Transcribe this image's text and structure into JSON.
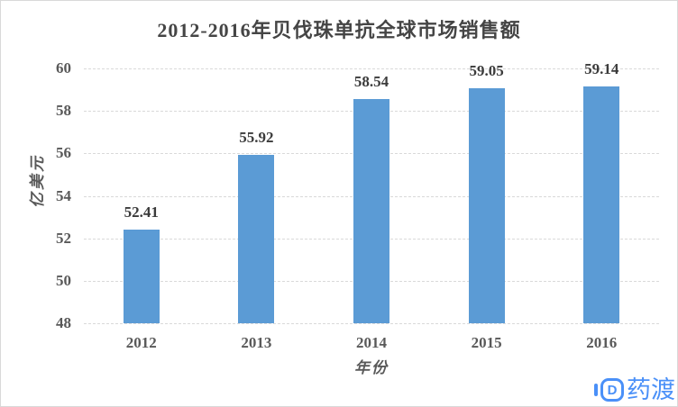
{
  "chart_data": {
    "type": "bar",
    "title": "2012-2016年贝伐珠单抗全球市场销售额",
    "categories": [
      "2012",
      "2013",
      "2014",
      "2015",
      "2016"
    ],
    "values": [
      52.41,
      55.92,
      58.54,
      59.05,
      59.14
    ],
    "data_labels": [
      "52.41",
      "55.92",
      "58.54",
      "59.05",
      "59.14"
    ],
    "xlabel": "年份",
    "ylabel": "亿美元",
    "ylim": [
      48,
      60
    ],
    "yticks": [
      48,
      50,
      52,
      54,
      56,
      58,
      60
    ],
    "grid": "horizontal dashed gridlines on",
    "legend_position": "none",
    "bar_color": "#5B9BD5",
    "gridline_color": "#D9D9D9",
    "title_color": "#454545",
    "tick_label_color": "#595959",
    "data_label_color": "#3B3B3B"
  },
  "watermark": {
    "text": "药渡",
    "logo_letter": "D",
    "color": "#4A90F8"
  }
}
